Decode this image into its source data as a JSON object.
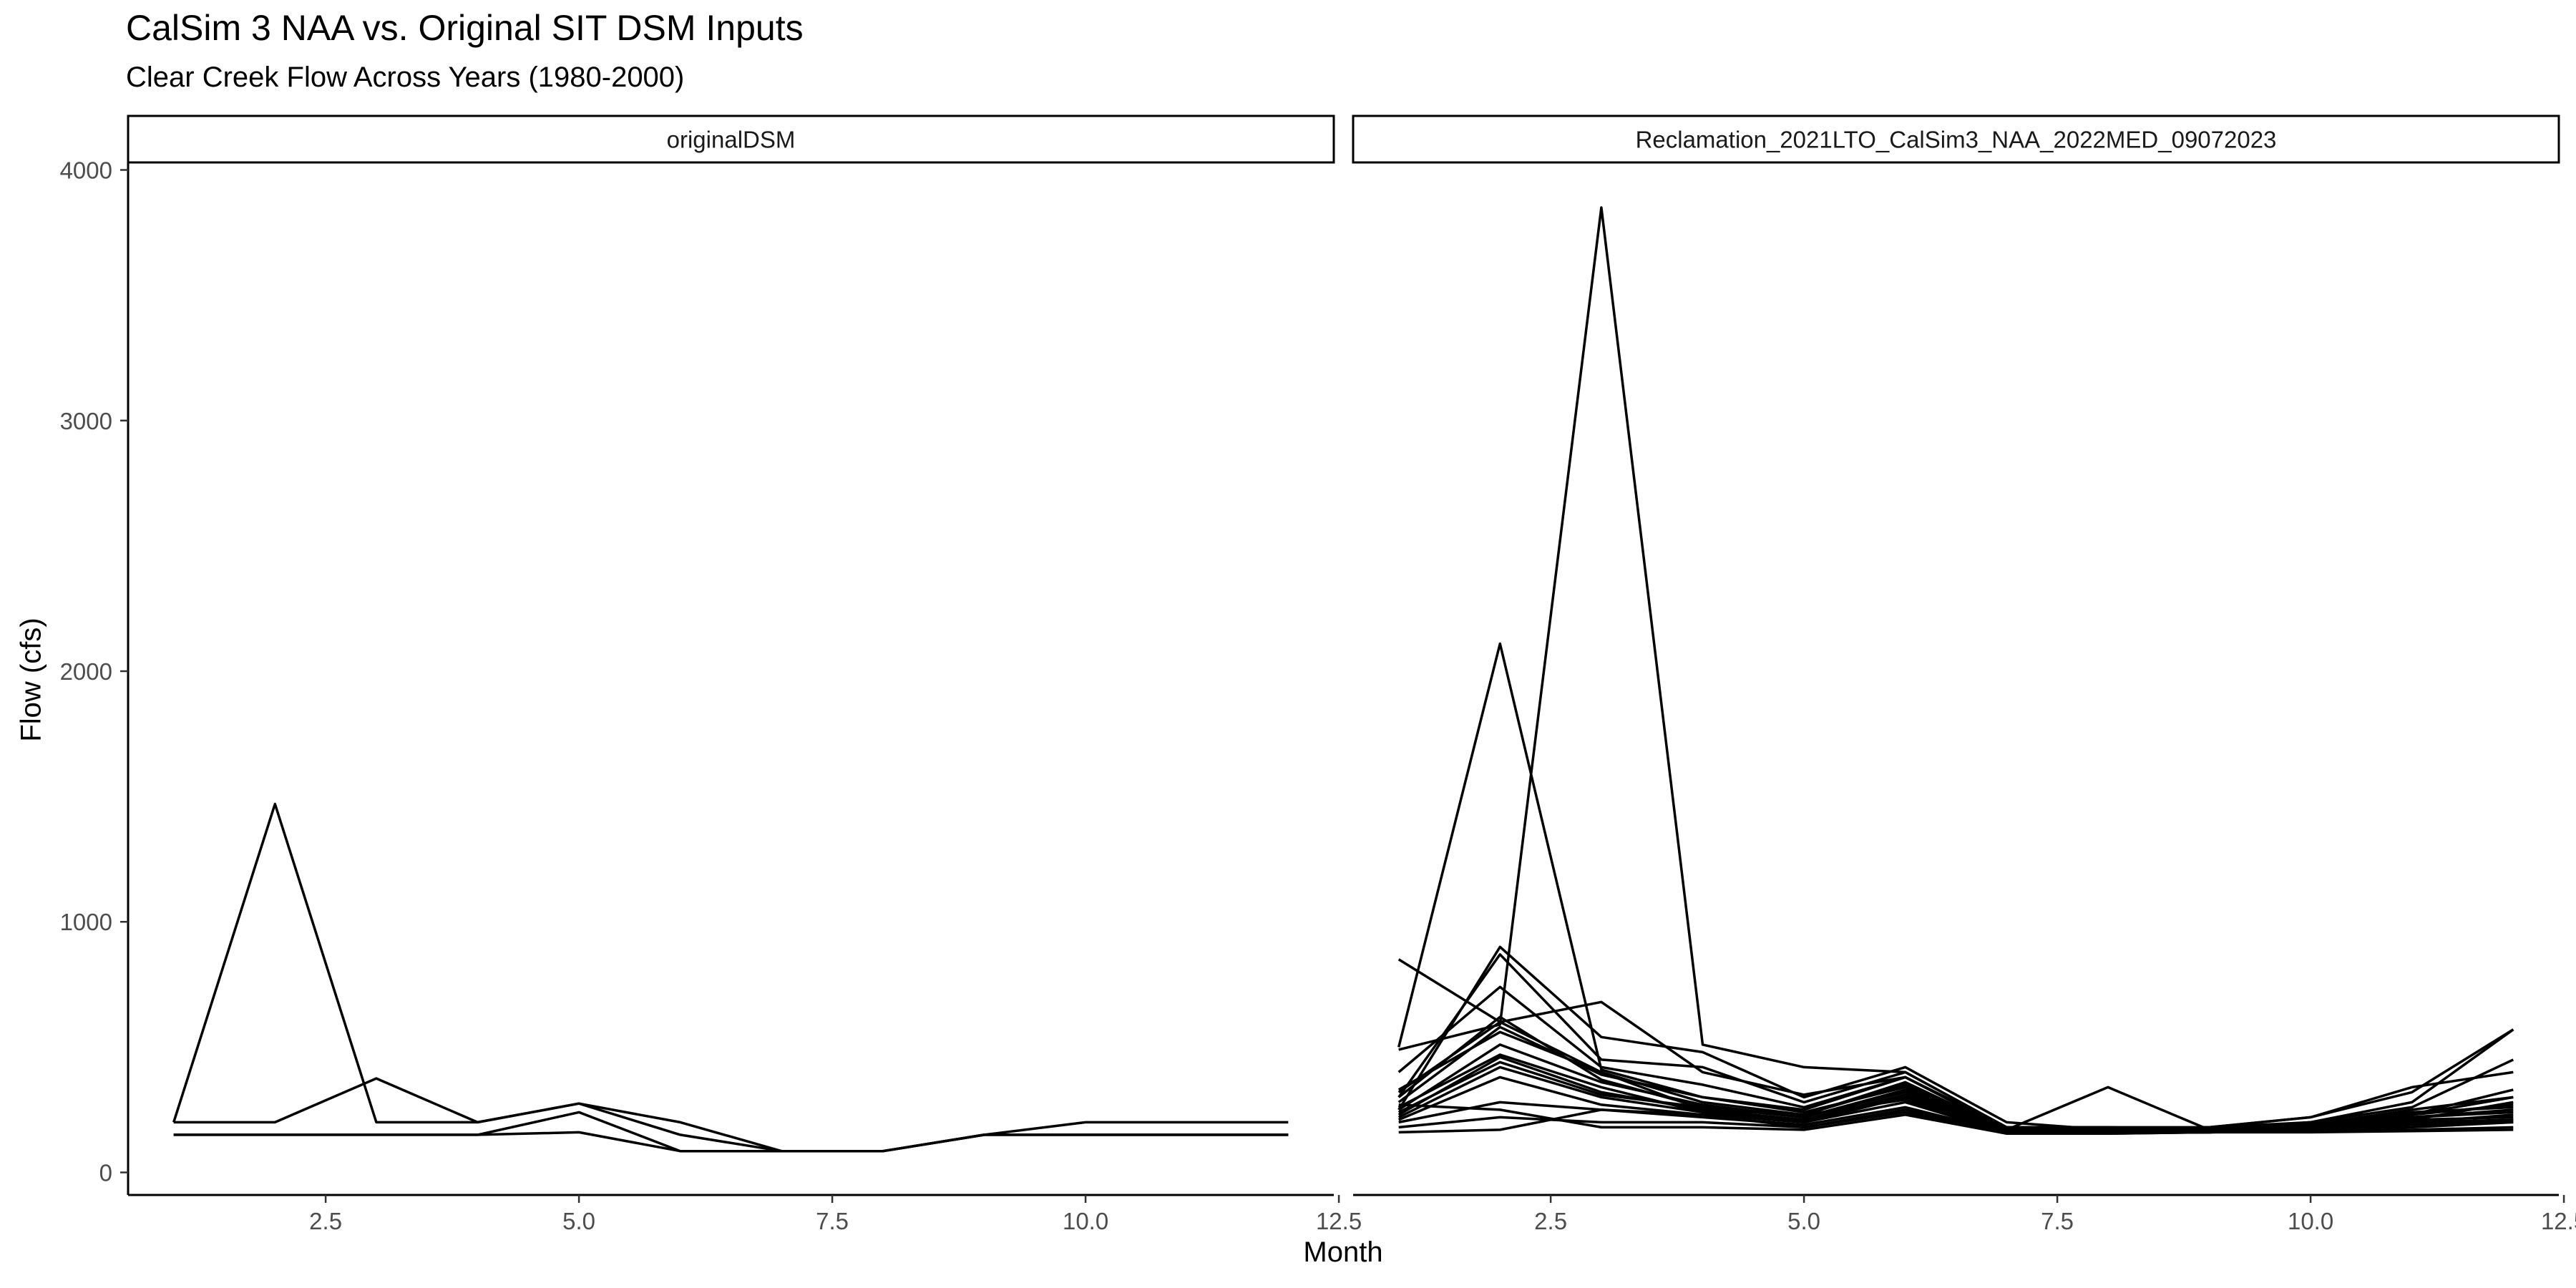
{
  "title": "CalSim 3 NAA vs. Original SIT DSM Inputs",
  "subtitle": "Clear Creek Flow Across Years (1980-2000)",
  "chart_data": {
    "type": "line",
    "title": "CalSim 3 NAA vs. Original SIT DSM Inputs",
    "subtitle": "Clear Creek Flow Across Years (1980-2000)",
    "xlabel": "Month",
    "ylabel": "Flow (cfs)",
    "xlim": [
      0.55,
      12.45
    ],
    "ylim": [
      -90,
      4030
    ],
    "x_ticks": [
      2.5,
      5.0,
      7.5,
      10.0,
      12.5
    ],
    "x_tick_labels": [
      "2.5",
      "5.0",
      "7.5",
      "10.0",
      "12.5"
    ],
    "y_ticks": [
      0,
      1000,
      2000,
      3000,
      4000
    ],
    "y_tick_labels": [
      "0",
      "1000",
      "2000",
      "3000",
      "4000"
    ],
    "grid": false,
    "line_color": "#000000",
    "facets": [
      {
        "strip_label": "originalDSM",
        "series": [
          {
            "x": [
              1,
              2,
              3,
              4,
              5,
              6,
              7,
              8,
              9,
              10,
              11,
              12
            ],
            "y": [
              200,
              1470,
              200,
              200,
              275,
              200,
              85,
              85,
              150,
              200,
              200,
              200
            ]
          },
          {
            "x": [
              1,
              2,
              3,
              4,
              5,
              6,
              7,
              8,
              9,
              10,
              11,
              12
            ],
            "y": [
              200,
              200,
              375,
              200,
              275,
              150,
              85,
              85,
              150,
              150,
              150,
              150
            ]
          },
          {
            "x": [
              1,
              2,
              3,
              4,
              5,
              6,
              7,
              8,
              9,
              10,
              11,
              12
            ],
            "y": [
              150,
              150,
              150,
              150,
              240,
              85,
              85,
              85,
              150,
              150,
              150,
              150
            ]
          },
          {
            "x": [
              1,
              2,
              3,
              4,
              5,
              6,
              7,
              8,
              9,
              10,
              11,
              12
            ],
            "y": [
              150,
              150,
              150,
              150,
              160,
              85,
              85,
              85,
              150,
              150,
              150,
              150
            ]
          }
        ]
      },
      {
        "strip_label": "Reclamation_2021LTO_CalSim3_NAA_2022MED_09072023",
        "series": [
          {
            "x": [
              1,
              2,
              3,
              4,
              5,
              6,
              7,
              8,
              9,
              10,
              11,
              12
            ],
            "y": [
              500,
              2110,
              410,
              300,
              250,
              380,
              170,
              170,
              170,
              200,
              230,
              330
            ]
          },
          {
            "x": [
              1,
              2,
              3,
              4,
              5,
              6,
              7,
              8,
              9,
              10,
              11,
              12
            ],
            "y": [
              490,
              590,
              3850,
              510,
              420,
              400,
              180,
              180,
              170,
              180,
              210,
              280
            ]
          },
          {
            "x": [
              1,
              2,
              3,
              4,
              5,
              6,
              7,
              8,
              9,
              10,
              11,
              12
            ],
            "y": [
              250,
              900,
              540,
              480,
              300,
              420,
              200,
              170,
              180,
              220,
              320,
              570
            ]
          },
          {
            "x": [
              1,
              2,
              3,
              4,
              5,
              6,
              7,
              8,
              9,
              10,
              11,
              12
            ],
            "y": [
              850,
              600,
              400,
              250,
              230,
              350,
              170,
              340,
              170,
              190,
              230,
              300
            ]
          },
          {
            "x": [
              1,
              2,
              3,
              4,
              5,
              6,
              7,
              8,
              9,
              10,
              11,
              12
            ],
            "y": [
              300,
              870,
              450,
              420,
              280,
              400,
              180,
              170,
              180,
              200,
              260,
              450
            ]
          },
          {
            "x": [
              1,
              2,
              3,
              4,
              5,
              6,
              7,
              8,
              9,
              10,
              11,
              12
            ],
            "y": [
              400,
              740,
              420,
              350,
              260,
              380,
              170,
              170,
              170,
              200,
              280,
              570
            ]
          },
          {
            "x": [
              1,
              2,
              3,
              4,
              5,
              6,
              7,
              8,
              9,
              10,
              11,
              12
            ],
            "y": [
              320,
              600,
              680,
              400,
              310,
              380,
              180,
              180,
              180,
              220,
              340,
              400
            ]
          },
          {
            "x": [
              1,
              2,
              3,
              4,
              5,
              6,
              7,
              8,
              9,
              10,
              11,
              12
            ],
            "y": [
              280,
              580,
              390,
              300,
              240,
              340,
              170,
              165,
              170,
              190,
              250,
              300
            ]
          },
          {
            "x": [
              1,
              2,
              3,
              4,
              5,
              6,
              7,
              8,
              9,
              10,
              11,
              12
            ],
            "y": [
              250,
              510,
              360,
              270,
              220,
              320,
              165,
              165,
              170,
              180,
              230,
              270
            ]
          },
          {
            "x": [
              1,
              2,
              3,
              4,
              5,
              6,
              7,
              8,
              9,
              10,
              11,
              12
            ],
            "y": [
              230,
              460,
              320,
              250,
              210,
              310,
              160,
              160,
              165,
              180,
              220,
              250
            ]
          },
          {
            "x": [
              1,
              2,
              3,
              4,
              5,
              6,
              7,
              8,
              9,
              10,
              11,
              12
            ],
            "y": [
              220,
              420,
              300,
              240,
              200,
              300,
              160,
              160,
              160,
              170,
              200,
              230
            ]
          },
          {
            "x": [
              1,
              2,
              3,
              4,
              5,
              6,
              7,
              8,
              9,
              10,
              11,
              12
            ],
            "y": [
              200,
              280,
              250,
              220,
              190,
              260,
              160,
              160,
              160,
              170,
              190,
              210
            ]
          },
          {
            "x": [
              1,
              2,
              3,
              4,
              5,
              6,
              7,
              8,
              9,
              10,
              11,
              12
            ],
            "y": [
              180,
              220,
              200,
              200,
              180,
              250,
              160,
              160,
              160,
              165,
              180,
              200
            ]
          },
          {
            "x": [
              1,
              2,
              3,
              4,
              5,
              6,
              7,
              8,
              9,
              10,
              11,
              12
            ],
            "y": [
              160,
              170,
              250,
              230,
              180,
              240,
              155,
              155,
              160,
              165,
              170,
              180
            ]
          },
          {
            "x": [
              1,
              2,
              3,
              4,
              5,
              6,
              7,
              8,
              9,
              10,
              11,
              12
            ],
            "y": [
              270,
              250,
              180,
              180,
              170,
              230,
              155,
              155,
              160,
              160,
              165,
              170
            ]
          },
          {
            "x": [
              1,
              2,
              3,
              4,
              5,
              6,
              7,
              8,
              9,
              10,
              11,
              12
            ],
            "y": [
              330,
              560,
              400,
              280,
              230,
              360,
              170,
              170,
              170,
              190,
              240,
              260
            ]
          },
          {
            "x": [
              1,
              2,
              3,
              4,
              5,
              6,
              7,
              8,
              9,
              10,
              11,
              12
            ],
            "y": [
              300,
              620,
              370,
              260,
              220,
              330,
              165,
              165,
              165,
              185,
              220,
              240
            ]
          },
          {
            "x": [
              1,
              2,
              3,
              4,
              5,
              6,
              7,
              8,
              9,
              10,
              11,
              12
            ],
            "y": [
              260,
              470,
              340,
              240,
              210,
              300,
              160,
              160,
              160,
              180,
              210,
              220
            ]
          },
          {
            "x": [
              1,
              2,
              3,
              4,
              5,
              6,
              7,
              8,
              9,
              10,
              11,
              12
            ],
            "y": [
              240,
              440,
              310,
              260,
              230,
              290,
              160,
              160,
              160,
              175,
              200,
              210
            ]
          },
          {
            "x": [
              1,
              2,
              3,
              4,
              5,
              6,
              7,
              8,
              9,
              10,
              11,
              12
            ],
            "y": [
              210,
              380,
              270,
              230,
              200,
              280,
              158,
              158,
              160,
              170,
              190,
              200
            ]
          }
        ]
      }
    ]
  }
}
